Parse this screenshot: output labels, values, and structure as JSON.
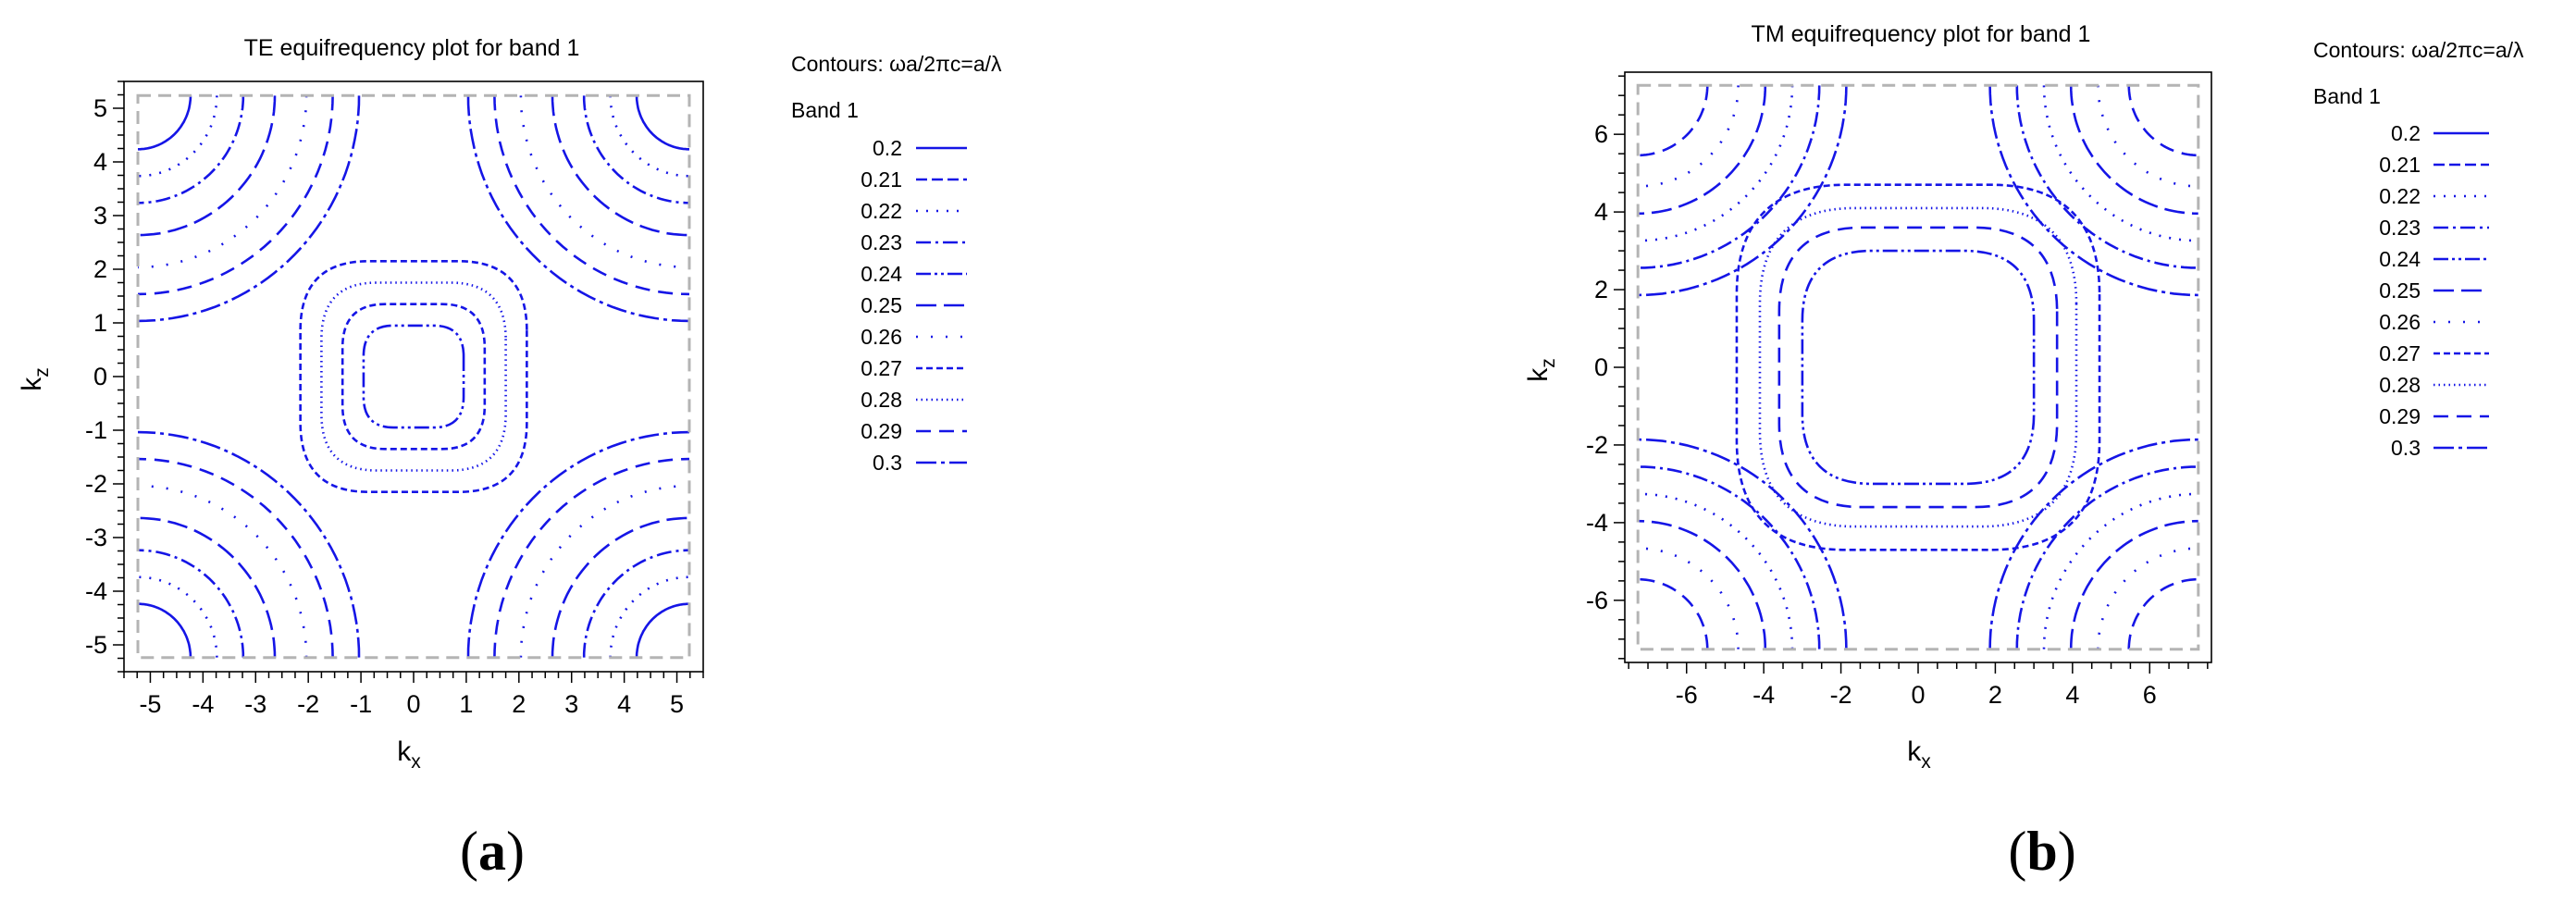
{
  "colors": {
    "contour": "#1515e6",
    "frame": "#000000",
    "boundary": "#b4b4b4"
  },
  "chart_data": [
    {
      "id": "a",
      "type": "contour",
      "title": "TE equifrequency plot for band 1",
      "panel_label": "a",
      "xlabel": "k",
      "xlabel_sub": "x",
      "ylabel": "k",
      "ylabel_sub": "z",
      "xlim": [
        -5.5,
        5.5
      ],
      "ylim": [
        -5.5,
        5.5
      ],
      "boundary": 5.236,
      "xticks": [
        -5,
        -4,
        -3,
        -2,
        -1,
        0,
        1,
        2,
        3,
        4,
        5
      ],
      "yticks": [
        -5,
        -4,
        -3,
        -2,
        -1,
        0,
        1,
        2,
        3,
        4,
        5
      ],
      "legend_title": "Contours: ωa/2πc=a/λ",
      "legend_band": "Band 1",
      "levels": [
        {
          "value": "0.2",
          "dash": "solid"
        },
        {
          "value": "0.21",
          "dash": "dash"
        },
        {
          "value": "0.22",
          "dash": "dot"
        },
        {
          "value": "0.23",
          "dash": "dashdot"
        },
        {
          "value": "0.24",
          "dash": "dashdotdot"
        },
        {
          "value": "0.25",
          "dash": "longdash"
        },
        {
          "value": "0.26",
          "dash": "sparsedot"
        },
        {
          "value": "0.27",
          "dash": "shortdash"
        },
        {
          "value": "0.28",
          "dash": "finedot"
        },
        {
          "value": "0.29",
          "dash": "longdashgap"
        },
        {
          "value": "0.3",
          "dash": "dashdotlong"
        }
      ],
      "contours": [
        {
          "shape": "square",
          "r": 0.95,
          "level": 4
        },
        {
          "shape": "square",
          "r": 1.35,
          "level": 7
        },
        {
          "shape": "square",
          "r": 1.75,
          "level": 8
        },
        {
          "shape": "square",
          "r": 2.15,
          "level": 7
        },
        {
          "shape": "corner",
          "r": 1.0,
          "level": 0
        },
        {
          "shape": "corner",
          "r": 1.5,
          "level": 2
        },
        {
          "shape": "corner",
          "r": 2.0,
          "level": 3
        },
        {
          "shape": "corner",
          "r": 2.6,
          "level": 5
        },
        {
          "shape": "corner",
          "r": 3.2,
          "level": 6
        },
        {
          "shape": "corner",
          "r": 3.7,
          "level": 9
        },
        {
          "shape": "corner",
          "r": 4.2,
          "level": 10
        }
      ]
    },
    {
      "id": "b",
      "type": "contour",
      "title": "TM equifrequency plot for band 1",
      "panel_label": "b",
      "xlabel": "k",
      "xlabel_sub": "x",
      "ylabel": "k",
      "ylabel_sub": "z",
      "xlim": [
        -7.6,
        7.6
      ],
      "ylim": [
        -7.6,
        7.6
      ],
      "boundary": 7.26,
      "xticks": [
        -6,
        -4,
        -2,
        0,
        2,
        4,
        6
      ],
      "yticks": [
        -6,
        -4,
        -2,
        0,
        2,
        4,
        6
      ],
      "legend_title": "Contours: ωa/2πc=a/λ",
      "legend_band": "Band 1",
      "levels": [
        {
          "value": "0.2",
          "dash": "solid"
        },
        {
          "value": "0.21",
          "dash": "dash"
        },
        {
          "value": "0.22",
          "dash": "dot"
        },
        {
          "value": "0.23",
          "dash": "dashdot"
        },
        {
          "value": "0.24",
          "dash": "dashdotdot"
        },
        {
          "value": "0.25",
          "dash": "longdash"
        },
        {
          "value": "0.26",
          "dash": "sparsedot"
        },
        {
          "value": "0.27",
          "dash": "shortdash"
        },
        {
          "value": "0.28",
          "dash": "finedot"
        },
        {
          "value": "0.29",
          "dash": "longdashgap"
        },
        {
          "value": "0.3",
          "dash": "dashdotlong"
        }
      ],
      "contours": [
        {
          "shape": "square",
          "r": 3.0,
          "level": 4
        },
        {
          "shape": "square",
          "r": 3.6,
          "level": 9
        },
        {
          "shape": "square",
          "r": 4.1,
          "level": 8
        },
        {
          "shape": "square",
          "r": 4.7,
          "level": 7
        },
        {
          "shape": "corner",
          "r": 1.8,
          "level": 9
        },
        {
          "shape": "corner",
          "r": 2.6,
          "level": 6
        },
        {
          "shape": "corner",
          "r": 3.3,
          "level": 5
        },
        {
          "shape": "corner",
          "r": 4.0,
          "level": 2
        },
        {
          "shape": "corner",
          "r": 4.7,
          "level": 3
        },
        {
          "shape": "corner",
          "r": 5.4,
          "level": 10
        }
      ]
    }
  ]
}
